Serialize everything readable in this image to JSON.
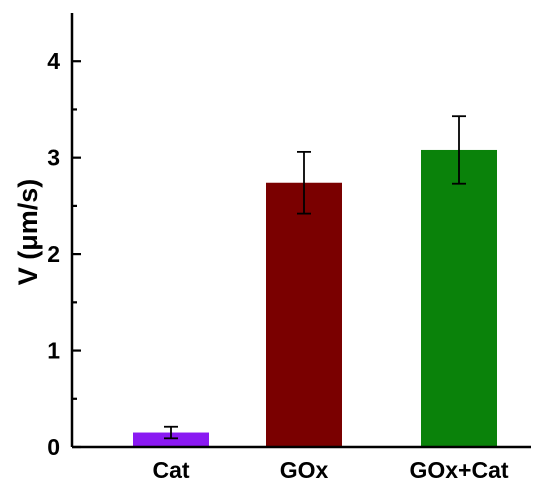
{
  "chart_data": {
    "type": "bar",
    "categories": [
      "Cat",
      "GOx",
      "GOx+Cat"
    ],
    "values": [
      0.15,
      2.74,
      3.08
    ],
    "errors": [
      0.06,
      0.32,
      0.35
    ],
    "colors": [
      "#8a19f2",
      "#7a0000",
      "#0a820a"
    ],
    "ylabel": "V (μm/s)",
    "xlabel": "",
    "title": "",
    "ylim": [
      0,
      4.5
    ],
    "yticks": [
      0,
      1,
      2,
      3,
      4
    ],
    "ytick_labels": [
      "0",
      "1",
      "2",
      "3",
      "4"
    ],
    "grid": false,
    "legend": "none"
  }
}
